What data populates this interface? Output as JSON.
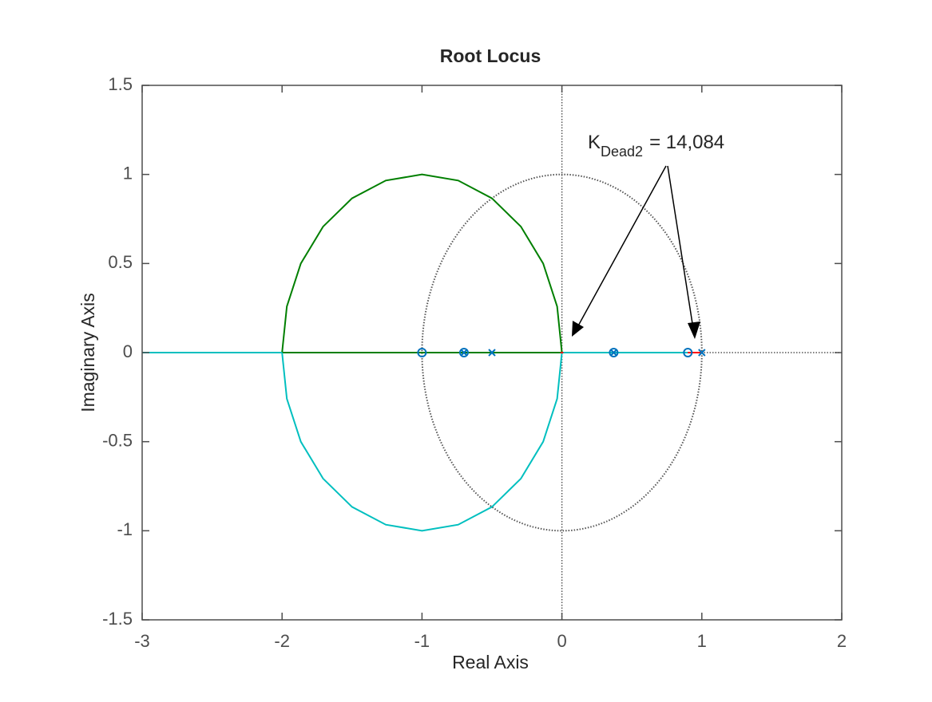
{
  "chart_data": {
    "type": "root_locus",
    "title": "Root Locus",
    "x_label": "Real Axis",
    "y_label": "Imaginary Axis",
    "xlim": [
      -3,
      2
    ],
    "ylim": [
      -1.5,
      1.5
    ],
    "xticks": [
      -3,
      -2,
      -1,
      0,
      1,
      2
    ],
    "yticks": [
      -1.5,
      -1,
      -0.5,
      0,
      0.5,
      1,
      1.5
    ],
    "grid": false,
    "unit_circle": true,
    "zero_lines": true,
    "series": [
      {
        "color": "#007f00",
        "x": [
          0,
          -0.0341,
          -0.134,
          -0.2929,
          -0.5,
          -0.7412,
          -1,
          -1.2588,
          -1.5,
          -1.7071,
          -1.866,
          -1.9659,
          -2
        ],
        "values": [
          0,
          0.2588,
          0.5,
          0.7071,
          0.866,
          0.9659,
          1,
          0.9659,
          0.866,
          0.7071,
          0.5,
          0.2588,
          0
        ]
      },
      {
        "color": "#007f00",
        "x": [
          -2,
          0
        ],
        "values": [
          0,
          0
        ]
      },
      {
        "color": "#00bfbf",
        "x": [
          0,
          -0.0341,
          -0.134,
          -0.2929,
          -0.5,
          -0.7412,
          -1,
          -1.2588,
          -1.5,
          -1.7071,
          -1.866,
          -1.9659,
          -2
        ],
        "values": [
          0,
          -0.2588,
          -0.5,
          -0.7071,
          -0.866,
          -0.9659,
          -1,
          -0.9659,
          -0.866,
          -0.7071,
          -0.5,
          -0.2588,
          0
        ]
      },
      {
        "color": "#00bfbf",
        "x": [
          -3,
          -2
        ],
        "values": [
          0,
          0
        ]
      },
      {
        "color": "#00bfbf",
        "x": [
          0,
          0.9
        ],
        "values": [
          0,
          0
        ]
      },
      {
        "color": "#ff0000",
        "x": [
          -0.01,
          0.01
        ],
        "values": [
          0,
          0
        ]
      },
      {
        "color": "#ff0000",
        "x": [
          0.9,
          1
        ],
        "values": [
          0,
          0
        ]
      }
    ],
    "zeros": {
      "color": "#0072bd",
      "x": [
        -1,
        -0.7,
        0.37,
        0.9
      ],
      "values": [
        0,
        0,
        0,
        0
      ]
    },
    "poles": {
      "color": "#0072bd",
      "x": [
        -0.7,
        -0.5,
        0.37,
        1
      ],
      "values": [
        0,
        0,
        0,
        0
      ]
    },
    "annotation": {
      "text": "K",
      "subscript": "Dead2",
      "text_after": "= 14,084"
    }
  }
}
